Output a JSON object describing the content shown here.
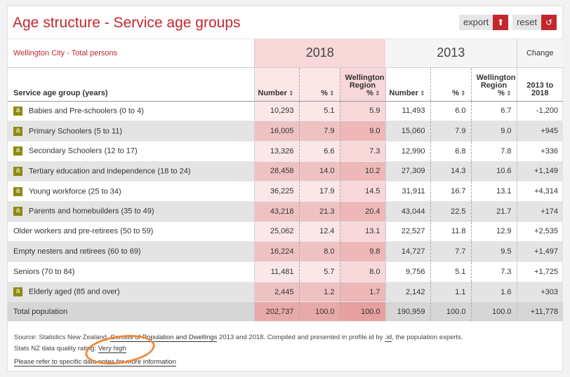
{
  "title": "Age structure - Service age groups",
  "tools": {
    "export_label": "export",
    "reset_label": "reset"
  },
  "area_label": "Wellington City - Total persons",
  "years": {
    "y1": "2018",
    "y2": "2013"
  },
  "change_label": "Change",
  "columns": {
    "group": "Service age group (years)",
    "number": "Number",
    "percent": "%",
    "region": "Wellington Region",
    "region_pct": "%",
    "change": "2013 to 2018"
  },
  "sort_glyph": "⇕",
  "rows": [
    {
      "badge": "a",
      "label": "Babies and Pre-schoolers (0 to 4)",
      "n18": "10,293",
      "p18": "5.1",
      "r18": "5.9",
      "n13": "11,493",
      "p13": "6.0",
      "r13": "6.7",
      "chg": "-1,200"
    },
    {
      "badge": "a",
      "label": "Primary Schoolers (5 to 11)",
      "n18": "16,005",
      "p18": "7.9",
      "r18": "9.0",
      "n13": "15,060",
      "p13": "7.9",
      "r13": "9.0",
      "chg": "+945"
    },
    {
      "badge": "a",
      "label": "Secondary Schoolers (12 to 17)",
      "n18": "13,326",
      "p18": "6.6",
      "r18": "7.3",
      "n13": "12,990",
      "p13": "6.8",
      "r13": "7.8",
      "chg": "+336"
    },
    {
      "badge": "a",
      "label": "Tertiary education and independence (18 to 24)",
      "n18": "28,458",
      "p18": "14.0",
      "r18": "10.2",
      "n13": "27,309",
      "p13": "14.3",
      "r13": "10.6",
      "chg": "+1,149"
    },
    {
      "badge": "a",
      "label": "Young workforce (25 to 34)",
      "n18": "36,225",
      "p18": "17.9",
      "r18": "14.5",
      "n13": "31,911",
      "p13": "16.7",
      "r13": "13.1",
      "chg": "+4,314"
    },
    {
      "badge": "a",
      "label": "Parents and homebuilders (35 to 49)",
      "n18": "43,218",
      "p18": "21.3",
      "r18": "20.4",
      "n13": "43,044",
      "p13": "22.5",
      "r13": "21.7",
      "chg": "+174"
    },
    {
      "badge": "",
      "label": "Older workers and pre-retirees (50 to 59)",
      "n18": "25,062",
      "p18": "12.4",
      "r18": "13.1",
      "n13": "22,527",
      "p13": "11.8",
      "r13": "12.9",
      "chg": "+2,535"
    },
    {
      "badge": "",
      "label": "Empty nesters and retirees (60 to 69)",
      "n18": "16,224",
      "p18": "8.0",
      "r18": "9.8",
      "n13": "14,727",
      "p13": "7.7",
      "r13": "9.5",
      "chg": "+1,497"
    },
    {
      "badge": "",
      "label": "Seniors (70 to 84)",
      "n18": "11,481",
      "p18": "5.7",
      "r18": "8.0",
      "n13": "9,756",
      "p13": "5.1",
      "r13": "7.3",
      "chg": "+1,725"
    },
    {
      "badge": "a",
      "label": "Elderly aged (85 and over)",
      "n18": "2,445",
      "p18": "1.2",
      "r18": "1.7",
      "n13": "2,142",
      "p13": "1.1",
      "r13": "1.6",
      "chg": "+303"
    }
  ],
  "total": {
    "label": "Total population",
    "n18": "202,737",
    "p18": "100.0",
    "r18": "100.0",
    "n13": "190,959",
    "p13": "100.0",
    "r13": "100.0",
    "chg": "+11,778"
  },
  "footer": {
    "source_prefix": "Source: Statistics New Zealand, ",
    "census_link": "Census of Population and Dwellings",
    "source_mid": " 2013 and 2018. Compiled and presented in profile.id by ",
    "id_link": ".id",
    "source_suffix": ", the population experts.",
    "quality_prefix": "Stats NZ data quality rating: ",
    "quality_link": "Very high",
    "notes_link": "Please refer to specific data notes for more information"
  },
  "colors": {
    "accent": "#c4262e",
    "badge": "#8e8a10",
    "highlight_circle": "#f08a3c"
  }
}
